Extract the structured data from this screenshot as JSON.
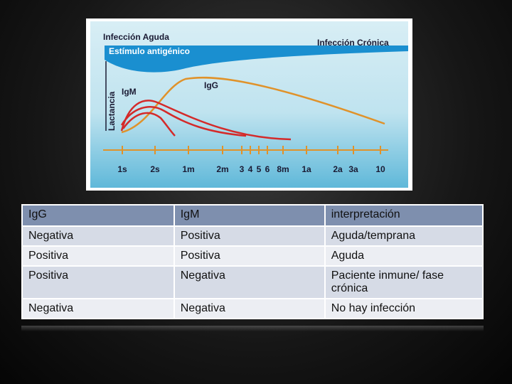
{
  "figure": {
    "acute": "Infección Aguda",
    "stimulus": "Estímulo antigénico",
    "chronic": "Infección Crónica",
    "lactation": "Lactancia",
    "igm": "IgM",
    "igg": "IgG",
    "times": [
      "1s",
      "2s",
      "1m",
      "2m",
      "3",
      "4",
      "5",
      "6",
      "8m",
      "1a",
      "2a",
      "3a",
      "10"
    ]
  },
  "table": {
    "header": [
      "IgG",
      "IgM",
      "interpretación"
    ],
    "rows": [
      [
        "Negativa",
        "Positiva",
        "Aguda/temprana"
      ],
      [
        "Positiva",
        "Positiva",
        "Aguda"
      ],
      [
        "Positiva",
        "Negativa",
        "Paciente inmune/ fase crónica"
      ],
      [
        "Negativa",
        "Negativa",
        "No hay infección"
      ]
    ]
  }
}
